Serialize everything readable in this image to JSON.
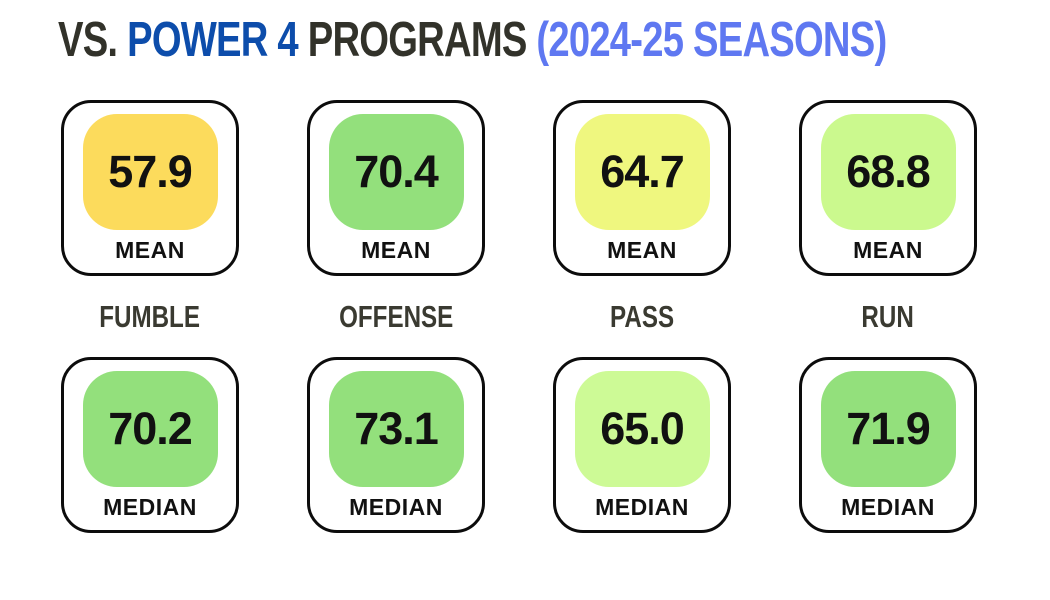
{
  "title": {
    "vs": "VS. ",
    "power4": "POWER 4 ",
    "programs": "PROGRAMS ",
    "seasons": "(2024-25 SEASONS)"
  },
  "colors": {
    "title_dark": "#32322a",
    "title_blue": "#0d4dab",
    "title_light_blue": "#5f78f1",
    "category_label": "#3a3a31",
    "card_border": "#0c0c0c",
    "card_background": "#ffffff"
  },
  "columns": [
    {
      "category": "FUMBLE",
      "mean": {
        "value": "57.9",
        "label": "MEAN",
        "color": "#fcdb5c"
      },
      "median": {
        "value": "70.2",
        "label": "MEDIAN",
        "color": "#93e07c"
      }
    },
    {
      "category": "OFFENSE",
      "mean": {
        "value": "70.4",
        "label": "MEAN",
        "color": "#93e07c"
      },
      "median": {
        "value": "73.1",
        "label": "MEDIAN",
        "color": "#93e07c"
      }
    },
    {
      "category": "PASS",
      "mean": {
        "value": "64.7",
        "label": "MEAN",
        "color": "#eff77f"
      },
      "median": {
        "value": "65.0",
        "label": "MEDIAN",
        "color": "#cdfa96"
      }
    },
    {
      "category": "RUN",
      "mean": {
        "value": "68.8",
        "label": "MEAN",
        "color": "#cbf98e"
      },
      "median": {
        "value": "71.9",
        "label": "MEDIAN",
        "color": "#93e07c"
      }
    }
  ],
  "chart_data": {
    "type": "table",
    "title": "VS. POWER 4 PROGRAMS (2024-25 SEASONS)",
    "categories": [
      "FUMBLE",
      "OFFENSE",
      "PASS",
      "RUN"
    ],
    "series": [
      {
        "name": "MEAN",
        "values": [
          57.9,
          70.4,
          64.7,
          68.8
        ]
      },
      {
        "name": "MEDIAN",
        "values": [
          70.2,
          73.1,
          65.0,
          71.9
        ]
      }
    ]
  }
}
